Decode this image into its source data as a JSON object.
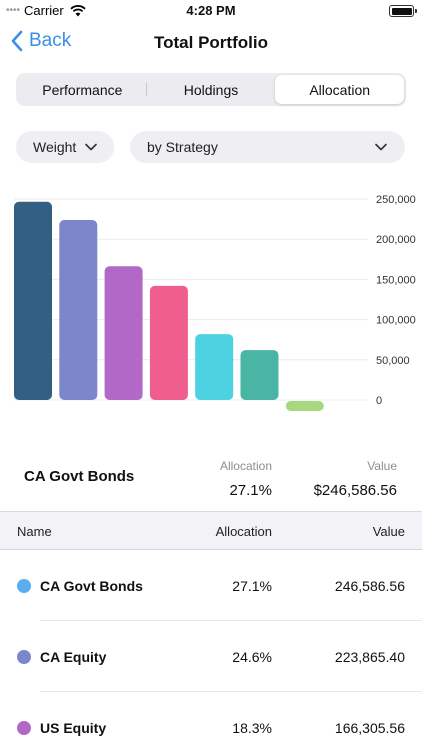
{
  "status_bar": {
    "signal": "••••",
    "carrier": "Carrier",
    "time": "4:28 PM"
  },
  "nav": {
    "back_label": "Back",
    "title": "Total Portfolio"
  },
  "tabs": [
    {
      "label": "Performance",
      "active": false
    },
    {
      "label": "Holdings",
      "active": false
    },
    {
      "label": "Allocation",
      "active": true
    }
  ],
  "filters": {
    "measure": "Weight",
    "grouping": "by Strategy"
  },
  "chart_data": {
    "type": "bar",
    "categories": [
      "CA Govt Bonds",
      "CA Equity",
      "US Equity",
      "",
      "",
      "",
      ""
    ],
    "values": [
      246586.56,
      223865.4,
      166305.56,
      142000,
      82000,
      62000,
      -10000
    ],
    "colors": [
      "#335f82",
      "#7c86cb",
      "#b168c6",
      "#ef5e8d",
      "#4dd2e2",
      "#49b5a4",
      "#a6d97e"
    ],
    "ylim": [
      0,
      250000
    ],
    "yticks": [
      "250,000",
      "200,000",
      "150,000",
      "100,000",
      "50,000",
      "0"
    ],
    "grid": true,
    "axis_position": "right"
  },
  "summary": {
    "name": "CA Govt Bonds",
    "allocation_label": "Allocation",
    "allocation": "27.1%",
    "value_label": "Value",
    "value": "$246,586.56"
  },
  "table": {
    "headers": {
      "name": "Name",
      "allocation": "Allocation",
      "value": "Value"
    },
    "rows": [
      {
        "name": "CA Govt Bonds",
        "allocation": "27.1%",
        "value": "246,586.56",
        "color": "#5aaef0"
      },
      {
        "name": "CA Equity",
        "allocation": "24.6%",
        "value": "223,865.40",
        "color": "#7c86cb"
      },
      {
        "name": "US Equity",
        "allocation": "18.3%",
        "value": "166,305.56",
        "color": "#b168c6"
      }
    ]
  }
}
